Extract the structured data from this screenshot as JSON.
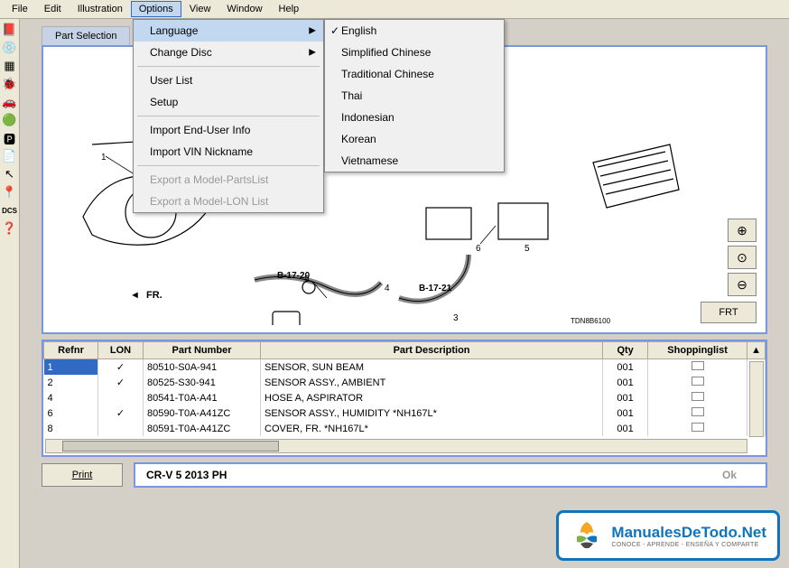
{
  "menubar": [
    "File",
    "Edit",
    "Illustration",
    "Options",
    "View",
    "Window",
    "Help"
  ],
  "menubar_active_index": 3,
  "options_menu": {
    "items": [
      {
        "label": "Language",
        "submenu": true,
        "highlighted": true
      },
      {
        "label": "Change Disc",
        "submenu": true
      },
      {
        "sep": true
      },
      {
        "label": "User List"
      },
      {
        "label": "Setup"
      },
      {
        "sep": true
      },
      {
        "label": "Import End-User Info"
      },
      {
        "label": "Import VIN Nickname"
      },
      {
        "sep": true
      },
      {
        "label": "Export a Model-PartsList",
        "disabled": true
      },
      {
        "label": "Export a Model-LON List",
        "disabled": true
      }
    ]
  },
  "lang_menu": {
    "items": [
      {
        "label": "English",
        "checked": true
      },
      {
        "label": "Simplified Chinese"
      },
      {
        "label": "Traditional Chinese"
      },
      {
        "label": "Thai"
      },
      {
        "label": "Indonesian"
      },
      {
        "label": "Korean"
      },
      {
        "label": "Vietnamese"
      }
    ]
  },
  "tab": "Part Selection",
  "diagram": {
    "fr_label": "FR.",
    "ref_labels": [
      "B-17-20",
      "B-17-21"
    ],
    "code": "TDN8B6100"
  },
  "zoom": {
    "in": "⊕",
    "fit": "⊙",
    "out": "⊖"
  },
  "frt": "FRT",
  "table": {
    "headers": [
      "Refnr",
      "LON",
      "Part Number",
      "Part Description",
      "Qty",
      "Shoppinglist"
    ],
    "rows": [
      {
        "refnr": "1",
        "lon": true,
        "pn": "80510-S0A-941",
        "desc": "SENSOR, SUN BEAM",
        "qty": "001",
        "selected": true
      },
      {
        "refnr": "2",
        "lon": true,
        "pn": "80525-S30-941",
        "desc": "SENSOR ASSY., AMBIENT",
        "qty": "001"
      },
      {
        "refnr": "4",
        "lon": false,
        "pn": "80541-T0A-A41",
        "desc": "HOSE A, ASPIRATOR",
        "qty": "001"
      },
      {
        "refnr": "6",
        "lon": true,
        "pn": "80590-T0A-A41ZC",
        "desc": "SENSOR ASSY., HUMIDITY *NH167L*",
        "qty": "001"
      },
      {
        "refnr": "8",
        "lon": false,
        "pn": "80591-T0A-A41ZC",
        "desc": "COVER, FR. *NH167L*",
        "qty": "001"
      }
    ]
  },
  "print": "Print",
  "model": "CR-V  5  2013  PH",
  "ok": "Ok",
  "watermark": {
    "title": "ManualesDeTodo.Net",
    "sub": "CONOCE - APRENDE - ENSEÑA Y COMPARTE"
  },
  "toolbar_icons": [
    "book",
    "disc",
    "grid",
    "bug",
    "car",
    "green",
    "park",
    "doc",
    "arrow",
    "pin",
    "DCS",
    "help"
  ],
  "colors": {
    "border": "#7a96df",
    "highlight": "#c2d7f0",
    "selection": "#316ac5",
    "watermark": "#1074bc"
  }
}
